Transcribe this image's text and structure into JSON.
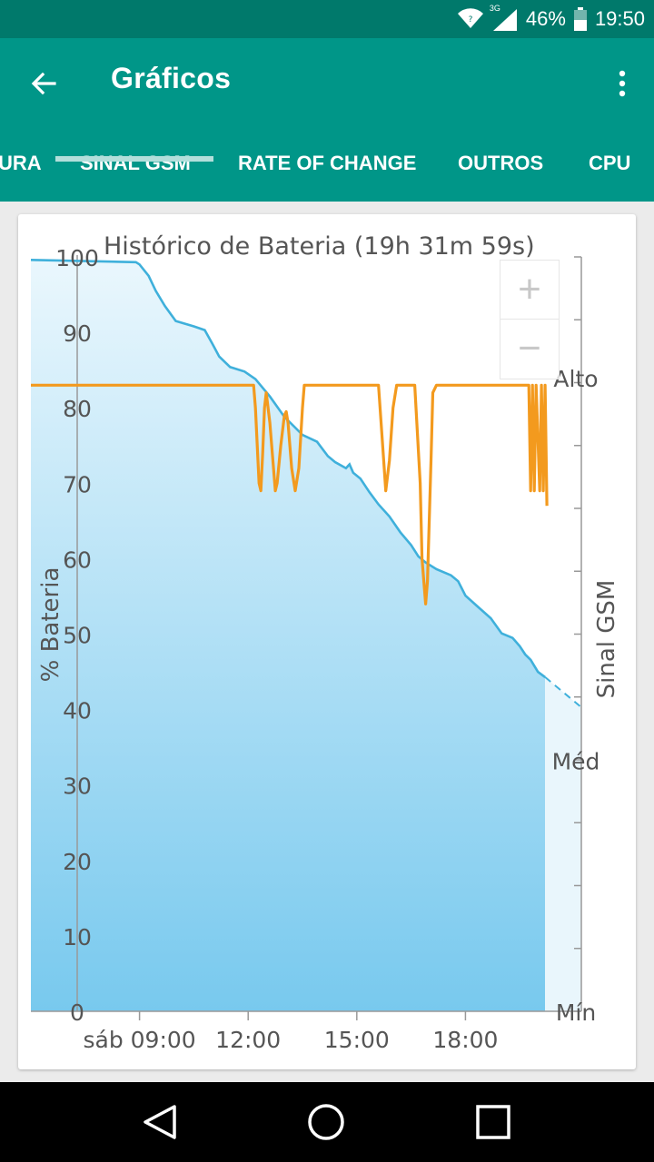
{
  "status_bar": {
    "network": "3G",
    "battery": "46%",
    "time": "19:50",
    "icons": [
      "wifi-icon",
      "signal-icon",
      "battery-icon"
    ]
  },
  "app_bar": {
    "title": "Gráficos",
    "back_icon": "arrow-left-icon",
    "menu_icon": "more-vert-icon"
  },
  "tabs": [
    {
      "label": "URA"
    },
    {
      "label": "SINAL GSM",
      "active": true
    },
    {
      "label": "RATE OF CHANGE"
    },
    {
      "label": "OUTROS"
    },
    {
      "label": "CPU"
    }
  ],
  "zoom": {
    "plus": "+",
    "minus": "−"
  },
  "chart_data": {
    "type": "line",
    "title": "Histórico de Bateria (19h 31m 59s)",
    "ylabel": "% Bateria",
    "y2label": "Sinal GSM",
    "ylim": [
      0,
      100
    ],
    "yticks": [
      "0",
      "10",
      "20",
      "30",
      "40",
      "50",
      "60",
      "70",
      "80",
      "90",
      "100"
    ],
    "y2ticks": [
      "Mín",
      "Méd",
      "Alto"
    ],
    "xticks": [
      "sáb 09:00",
      "12:00",
      "15:00",
      "18:00"
    ],
    "xtick_hours": [
      9,
      12,
      15,
      18
    ],
    "xlim_hours": [
      6.0,
      21.2
    ],
    "colors": {
      "battery_line": "#3fb0db",
      "battery_fill_top": "#e9f6fc",
      "battery_fill_bottom": "#7dcbee",
      "gsm": "#f39a1e",
      "axis": "#888888",
      "text": "#555555"
    },
    "series": [
      {
        "name": "% Bateria",
        "points": [
          [
            6.0,
            99.6
          ],
          [
            8.9,
            99.3
          ],
          [
            9.0,
            99.0
          ],
          [
            9.25,
            97.5
          ],
          [
            9.45,
            95.5
          ],
          [
            9.7,
            93.5
          ],
          [
            10.0,
            91.5
          ],
          [
            10.5,
            90.8
          ],
          [
            10.8,
            90.3
          ],
          [
            11.0,
            88.6
          ],
          [
            11.2,
            86.8
          ],
          [
            11.5,
            85.4
          ],
          [
            11.9,
            84.8
          ],
          [
            12.2,
            83.8
          ],
          [
            12.6,
            81.5
          ],
          [
            13.0,
            78.8
          ],
          [
            13.5,
            76.4
          ],
          [
            13.9,
            75.5
          ],
          [
            14.2,
            73.6
          ],
          [
            14.4,
            72.8
          ],
          [
            14.7,
            72.0
          ],
          [
            14.8,
            72.5
          ],
          [
            14.9,
            71.4
          ],
          [
            15.1,
            70.6
          ],
          [
            15.35,
            68.8
          ],
          [
            15.6,
            67.2
          ],
          [
            15.9,
            65.6
          ],
          [
            16.2,
            63.5
          ],
          [
            16.5,
            61.8
          ],
          [
            16.7,
            60.3
          ],
          [
            16.9,
            59.5
          ],
          [
            17.2,
            58.6
          ],
          [
            17.6,
            57.8
          ],
          [
            17.8,
            57.0
          ],
          [
            18.0,
            55.1
          ],
          [
            18.3,
            53.8
          ],
          [
            18.7,
            52.1
          ],
          [
            19.0,
            50.1
          ],
          [
            19.3,
            49.5
          ],
          [
            19.5,
            48.4
          ],
          [
            19.65,
            47.3
          ],
          [
            19.8,
            46.6
          ],
          [
            20.0,
            45.0
          ],
          [
            20.2,
            44.3
          ]
        ],
        "projection": [
          [
            20.2,
            44.3
          ],
          [
            21.2,
            40.3
          ]
        ]
      },
      {
        "name": "Sinal GSM",
        "points": [
          [
            6.0,
            83
          ],
          [
            12.15,
            83
          ],
          [
            12.2,
            80
          ],
          [
            12.3,
            70
          ],
          [
            12.35,
            69
          ],
          [
            12.4,
            74
          ],
          [
            12.45,
            80
          ],
          [
            12.5,
            82
          ],
          [
            12.6,
            78
          ],
          [
            12.7,
            72
          ],
          [
            12.75,
            69
          ],
          [
            12.8,
            70
          ],
          [
            12.9,
            75
          ],
          [
            13.0,
            79
          ],
          [
            13.05,
            79.5
          ],
          [
            13.1,
            78
          ],
          [
            13.2,
            72
          ],
          [
            13.3,
            69
          ],
          [
            13.4,
            72
          ],
          [
            13.5,
            80
          ],
          [
            13.55,
            83
          ],
          [
            15.6,
            83
          ],
          [
            15.7,
            76
          ],
          [
            15.8,
            69
          ],
          [
            15.9,
            73
          ],
          [
            16.0,
            80
          ],
          [
            16.1,
            83
          ],
          [
            16.6,
            83
          ],
          [
            16.75,
            70
          ],
          [
            16.8,
            60
          ],
          [
            16.9,
            54
          ],
          [
            16.95,
            57
          ],
          [
            17.05,
            73
          ],
          [
            17.1,
            82
          ],
          [
            17.2,
            83
          ],
          [
            19.75,
            83
          ],
          [
            19.8,
            69
          ],
          [
            19.85,
            83
          ],
          [
            19.9,
            69
          ],
          [
            19.95,
            83
          ],
          [
            20.05,
            69
          ],
          [
            20.1,
            83
          ],
          [
            20.15,
            69
          ],
          [
            20.2,
            83
          ],
          [
            20.25,
            67
          ]
        ]
      }
    ]
  }
}
